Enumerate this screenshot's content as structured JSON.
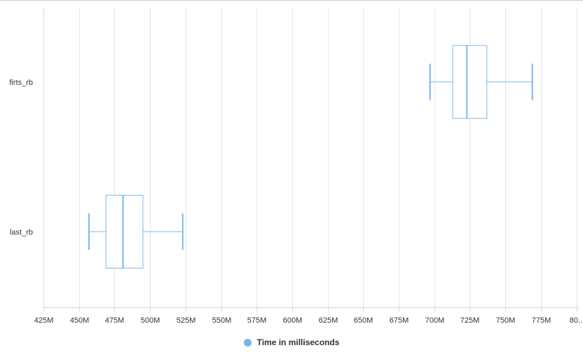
{
  "chart_data": {
    "type": "boxplot",
    "orientation": "horizontal",
    "title": "",
    "xlabel": "",
    "ylabel": "",
    "categories": [
      "firts_rb",
      "last_rb"
    ],
    "series": [
      {
        "name": "Time in milliseconds",
        "color": "#7cb5ec",
        "values": [
          {
            "low": 697,
            "q1": 713,
            "median": 723,
            "q3": 737,
            "high": 769
          },
          {
            "low": 457,
            "q1": 469,
            "median": 481,
            "q3": 495,
            "high": 523
          }
        ]
      }
    ],
    "x_ticks": [
      "425M",
      "450M",
      "475M",
      "500M",
      "525M",
      "550M",
      "575M",
      "600M",
      "625M",
      "650M",
      "675M",
      "700M",
      "725M",
      "750M",
      "775M",
      "80..."
    ],
    "x_tick_values": [
      425,
      450,
      475,
      500,
      525,
      550,
      575,
      600,
      625,
      650,
      675,
      700,
      725,
      750,
      775,
      800
    ],
    "xlim": [
      425,
      800
    ],
    "grid": true,
    "legend_position": "bottom-center",
    "gridline_color": "#e6e6e6",
    "axis_line_color": "#ccd6eb",
    "box_color": "#7cb5ec"
  },
  "legend": {
    "label": "Time in milliseconds"
  }
}
